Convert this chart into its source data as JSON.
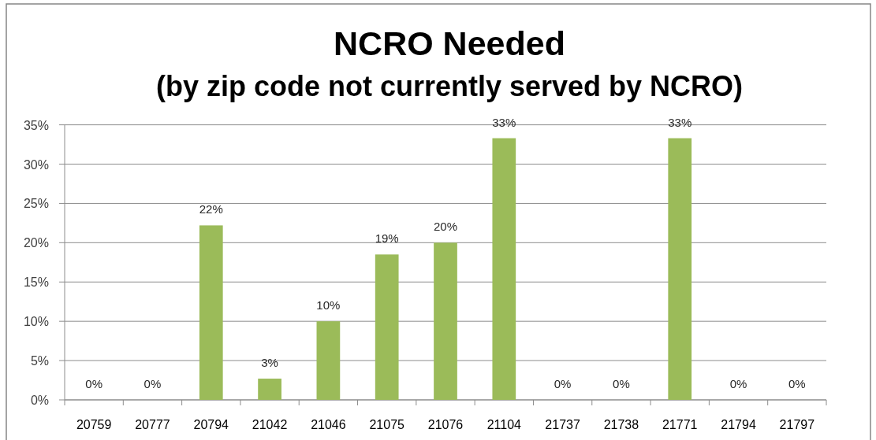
{
  "chart_data": {
    "type": "bar",
    "title": "NCRO Needed",
    "subtitle": "(by zip code not currently served by NCRO)",
    "categories": [
      "20759",
      "20777",
      "20794",
      "21042",
      "21046",
      "21075",
      "21076",
      "21104",
      "21737",
      "21738",
      "21771",
      "21794",
      "21797"
    ],
    "values": [
      0,
      0,
      22.2,
      2.7,
      10,
      18.5,
      20,
      33.3,
      0,
      0,
      33.3,
      0,
      0
    ],
    "value_labels": [
      "0%",
      "0%",
      "22%",
      "3%",
      "10%",
      "19%",
      "20%",
      "33%",
      "0%",
      "0%",
      "33%",
      "0%",
      "0%"
    ],
    "color": "#9bbb59",
    "ylim": [
      0,
      35
    ],
    "yticks": [
      {
        "value": 0,
        "label": "0%"
      },
      {
        "value": 5,
        "label": "5%"
      },
      {
        "value": 10,
        "label": "10%"
      },
      {
        "value": 15,
        "label": "15%"
      },
      {
        "value": 20,
        "label": "20%"
      },
      {
        "value": 25,
        "label": "25%"
      },
      {
        "value": 30,
        "label": "30%"
      },
      {
        "value": 35,
        "label": "35%"
      }
    ],
    "grid": "y"
  }
}
